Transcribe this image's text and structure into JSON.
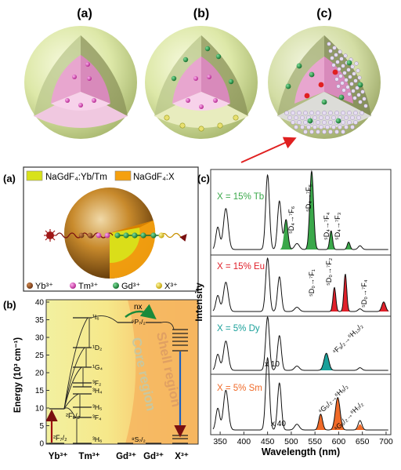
{
  "top": {
    "labels": [
      "(a)",
      "(b)",
      "(c)"
    ]
  },
  "structure_panel": {
    "label": "(a)",
    "legend_core": "NaGdF₄:Yb/Tm",
    "legend_shell": "NaGdF₄:X",
    "ion_legend": [
      "Yb³⁺",
      "Tm³⁺",
      "Gd³⁺",
      "X³⁺"
    ],
    "colors": {
      "core": "#d8e21a",
      "shell": "#f5a00f",
      "yb": "#8b4513",
      "tm": "#e040c0",
      "gd": "#1a8a3a",
      "x": "#e8d000"
    }
  },
  "energy_panel": {
    "label": "(b)",
    "y_axis_label": "Energy (10³ cm⁻¹)",
    "y_ticks": [
      "0",
      "5",
      "10",
      "15",
      "20",
      "25",
      "30",
      "35",
      "40"
    ],
    "ion_labels": [
      "Yb³⁺",
      "Tm³⁺",
      "Gd³⁺",
      "Gd³⁺",
      "X³⁺"
    ],
    "level_labels": {
      "yb_excited": "²F₅/₂",
      "yb_ground": "²F₇/₂",
      "tm": [
        "¹I₆",
        "¹D₂",
        "¹G₄",
        "³F₂",
        "³H₄",
        "³H₅",
        "³F₄",
        "³H₆"
      ],
      "gd_excited": "⁶P₇/₂",
      "gd_ground": "⁸S₇/₂"
    },
    "migration_label": "nx",
    "core_region": "Core region",
    "shell_region": "Shell region"
  },
  "spectra_panel": {
    "label": "(c)",
    "x_axis_label": "Wavelength (nm)",
    "y_axis_label": "Intensity",
    "x_ticks": [
      "350",
      "400",
      "450",
      "500",
      "550",
      "600",
      "650",
      "700"
    ],
    "x_range": [
      330,
      710
    ],
    "series": [
      {
        "name": "X = 15% Tb",
        "color": "#3aa84a",
        "transitions": [
          "⁵D₄→⁷F₆",
          "⁵D₄→⁷F₅",
          "⁵D₄→⁷F₄",
          "⁵D₄→⁷F₃"
        ]
      },
      {
        "name": "X = 15% Eu",
        "color": "#e0202a",
        "transitions": [
          "⁵D₀→⁷F₁",
          "⁵D₀→⁷F₂",
          "⁵D₀→⁷F₄"
        ]
      },
      {
        "name": "X = 5% Dy",
        "color": "#1aa09a",
        "transitions": [
          "⁴F₉/₂→⁶H₁₃/₂"
        ],
        "scale": "x 10"
      },
      {
        "name": "X = 5% Sm",
        "color": "#f06a28",
        "transitions": [
          "⁴G₅/₂→⁶H₅/₂",
          "⁴G₅/₂→⁶H₇/₂"
        ],
        "scale": "x 40"
      }
    ]
  }
}
